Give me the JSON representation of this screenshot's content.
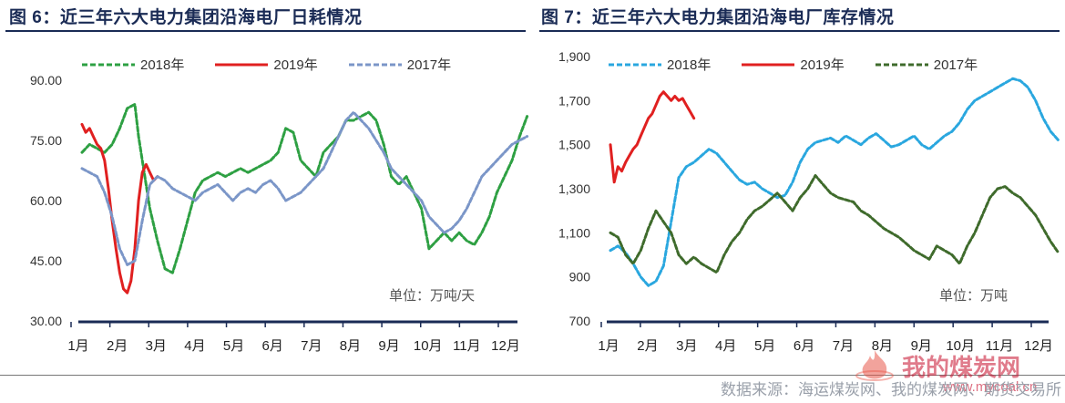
{
  "chart_data": [
    {
      "type": "line",
      "title": "图 6：近三年六大电力集团沿海电厂日耗情况",
      "unit_label": "单位：万吨/天",
      "categories": [
        "1月",
        "2月",
        "3月",
        "4月",
        "5月",
        "6月",
        "7月",
        "8月",
        "9月",
        "10月",
        "11月",
        "12月"
      ],
      "y_ticks": [
        "90.00",
        "75.00",
        "60.00",
        "45.00",
        "30.00"
      ],
      "ylim": [
        30,
        90
      ],
      "grid": false,
      "legend_position": "top",
      "series": [
        {
          "name": "2018年",
          "color": "#2ea043",
          "dash": true,
          "x": [
            0,
            0.2,
            0.4,
            0.6,
            0.8,
            1.0,
            1.2,
            1.4,
            1.5,
            1.6,
            1.8,
            2.0,
            2.2,
            2.4,
            2.6,
            2.8,
            3.0,
            3.2,
            3.4,
            3.6,
            3.8,
            4.0,
            4.2,
            4.4,
            4.6,
            4.8,
            5.0,
            5.2,
            5.4,
            5.6,
            5.8,
            6.0,
            6.2,
            6.4,
            6.6,
            6.8,
            7.0,
            7.2,
            7.4,
            7.6,
            7.8,
            8.0,
            8.2,
            8.4,
            8.6,
            8.8,
            9.0,
            9.2,
            9.4,
            9.6,
            9.8,
            10.0,
            10.2,
            10.4,
            10.6,
            10.8,
            11.0,
            11.2,
            11.4,
            11.6,
            11.8
          ],
          "y": [
            72,
            74,
            73,
            72,
            74,
            78,
            83,
            84,
            76,
            70,
            58,
            50,
            43,
            42,
            48,
            55,
            62,
            65,
            66,
            67,
            66,
            67,
            68,
            67,
            68,
            69,
            70,
            72,
            78,
            77,
            70,
            68,
            66,
            72,
            74,
            76,
            80,
            80,
            81,
            82,
            80,
            74,
            66,
            64,
            66,
            62,
            58,
            48,
            50,
            52,
            50,
            52,
            50,
            49,
            52,
            56,
            62,
            66,
            70,
            76,
            81
          ]
        },
        {
          "name": "2019年",
          "color": "#e02020",
          "dash": false,
          "x": [
            0,
            0.1,
            0.2,
            0.3,
            0.4,
            0.5,
            0.6,
            0.7,
            0.8,
            0.9,
            1.0,
            1.1,
            1.2,
            1.3,
            1.4,
            1.5,
            1.6,
            1.7,
            1.8,
            1.9,
            2.0
          ],
          "y": [
            79,
            77,
            78,
            76,
            74,
            73,
            70,
            63,
            55,
            48,
            42,
            38,
            37,
            40,
            48,
            60,
            67,
            69,
            67,
            65,
            66
          ]
        },
        {
          "name": "2017年",
          "color": "#7b96c8",
          "dash": true,
          "x": [
            0,
            0.2,
            0.4,
            0.6,
            0.8,
            1.0,
            1.2,
            1.4,
            1.6,
            1.8,
            2.0,
            2.2,
            2.4,
            2.6,
            2.8,
            3.0,
            3.2,
            3.4,
            3.6,
            3.8,
            4.0,
            4.2,
            4.4,
            4.6,
            4.8,
            5.0,
            5.2,
            5.4,
            5.6,
            5.8,
            6.0,
            6.2,
            6.4,
            6.6,
            6.8,
            7.0,
            7.2,
            7.4,
            7.6,
            7.8,
            8.0,
            8.2,
            8.4,
            8.6,
            8.8,
            9.0,
            9.2,
            9.4,
            9.6,
            9.8,
            10.0,
            10.2,
            10.4,
            10.6,
            10.8,
            11.0,
            11.2,
            11.4,
            11.6,
            11.8
          ],
          "y": [
            68,
            67,
            66,
            62,
            56,
            48,
            44,
            45,
            55,
            64,
            66,
            65,
            63,
            62,
            61,
            60,
            62,
            63,
            64,
            62,
            60,
            62,
            63,
            62,
            64,
            65,
            63,
            60,
            61,
            62,
            64,
            66,
            68,
            72,
            76,
            80,
            82,
            80,
            78,
            75,
            72,
            68,
            66,
            64,
            62,
            60,
            56,
            54,
            52,
            53,
            55,
            58,
            62,
            66,
            68,
            70,
            72,
            74,
            75,
            76
          ]
        }
      ]
    },
    {
      "type": "line",
      "title": "图 7：近三年六大电力集团沿海电厂库存情况",
      "unit_label": "单位：万吨",
      "categories": [
        "1月",
        "2月",
        "3月",
        "4月",
        "5月",
        "6月",
        "7月",
        "8月",
        "9月",
        "10月",
        "11月",
        "12月"
      ],
      "y_ticks": [
        "1,900",
        "1,700",
        "1,500",
        "1,300",
        "1,100",
        "900",
        "700"
      ],
      "ylim": [
        700,
        1900
      ],
      "grid": false,
      "legend_position": "top",
      "series": [
        {
          "name": "2018年",
          "color": "#2aa7df",
          "dash": true,
          "x": [
            0,
            0.2,
            0.4,
            0.6,
            0.8,
            1.0,
            1.2,
            1.4,
            1.6,
            1.8,
            2.0,
            2.2,
            2.4,
            2.6,
            2.8,
            3.0,
            3.2,
            3.4,
            3.6,
            3.8,
            4.0,
            4.2,
            4.4,
            4.6,
            4.8,
            5.0,
            5.2,
            5.4,
            5.6,
            5.8,
            6.0,
            6.2,
            6.4,
            6.6,
            6.8,
            7.0,
            7.2,
            7.4,
            7.6,
            7.8,
            8.0,
            8.2,
            8.4,
            8.6,
            8.8,
            9.0,
            9.2,
            9.4,
            9.6,
            9.8,
            10.0,
            10.2,
            10.4,
            10.6,
            10.8,
            11.0,
            11.2,
            11.4,
            11.6,
            11.8
          ],
          "y": [
            1020,
            1040,
            1010,
            960,
            900,
            860,
            880,
            950,
            1150,
            1350,
            1400,
            1420,
            1450,
            1480,
            1460,
            1420,
            1380,
            1340,
            1320,
            1330,
            1300,
            1280,
            1260,
            1270,
            1330,
            1420,
            1480,
            1510,
            1520,
            1530,
            1510,
            1540,
            1520,
            1500,
            1530,
            1550,
            1520,
            1490,
            1500,
            1520,
            1540,
            1500,
            1480,
            1510,
            1540,
            1560,
            1600,
            1660,
            1700,
            1720,
            1740,
            1760,
            1780,
            1800,
            1790,
            1760,
            1700,
            1620,
            1560,
            1520
          ]
        },
        {
          "name": "2019年",
          "color": "#e02020",
          "dash": false,
          "x": [
            0,
            0.1,
            0.2,
            0.3,
            0.4,
            0.5,
            0.6,
            0.7,
            0.8,
            0.9,
            1.0,
            1.1,
            1.2,
            1.3,
            1.4,
            1.5,
            1.6,
            1.7,
            1.8,
            1.9,
            2.0,
            2.1,
            2.2
          ],
          "y": [
            1500,
            1330,
            1400,
            1380,
            1420,
            1450,
            1480,
            1500,
            1540,
            1580,
            1620,
            1640,
            1680,
            1720,
            1740,
            1720,
            1700,
            1720,
            1700,
            1710,
            1680,
            1650,
            1620
          ]
        },
        {
          "name": "2017年",
          "color": "#3f6b2c",
          "dash": true,
          "x": [
            0,
            0.2,
            0.4,
            0.6,
            0.8,
            1.0,
            1.2,
            1.4,
            1.6,
            1.8,
            2.0,
            2.2,
            2.4,
            2.6,
            2.8,
            3.0,
            3.2,
            3.4,
            3.6,
            3.8,
            4.0,
            4.2,
            4.4,
            4.6,
            4.8,
            5.0,
            5.2,
            5.4,
            5.6,
            5.8,
            6.0,
            6.2,
            6.4,
            6.6,
            6.8,
            7.0,
            7.2,
            7.4,
            7.6,
            7.8,
            8.0,
            8.2,
            8.4,
            8.6,
            8.8,
            9.0,
            9.2,
            9.4,
            9.6,
            9.8,
            10.0,
            10.2,
            10.4,
            10.6,
            10.8,
            11.0,
            11.2,
            11.4,
            11.6,
            11.8
          ],
          "y": [
            1100,
            1080,
            1000,
            960,
            1020,
            1120,
            1200,
            1150,
            1100,
            1000,
            960,
            990,
            960,
            940,
            920,
            1000,
            1060,
            1100,
            1160,
            1200,
            1220,
            1250,
            1280,
            1240,
            1200,
            1260,
            1300,
            1360,
            1320,
            1280,
            1260,
            1250,
            1240,
            1200,
            1180,
            1150,
            1120,
            1100,
            1080,
            1050,
            1020,
            1000,
            980,
            1040,
            1020,
            1000,
            960,
            1040,
            1100,
            1180,
            1260,
            1300,
            1310,
            1280,
            1260,
            1220,
            1180,
            1120,
            1060,
            1010
          ]
        }
      ]
    }
  ],
  "source_text": "数据来源：海运煤炭网、我的煤炭网、期货交易所",
  "logo": {
    "name": "我的煤炭网",
    "url": "www.mycoal.cn",
    "icon": "flame-logo-icon"
  }
}
